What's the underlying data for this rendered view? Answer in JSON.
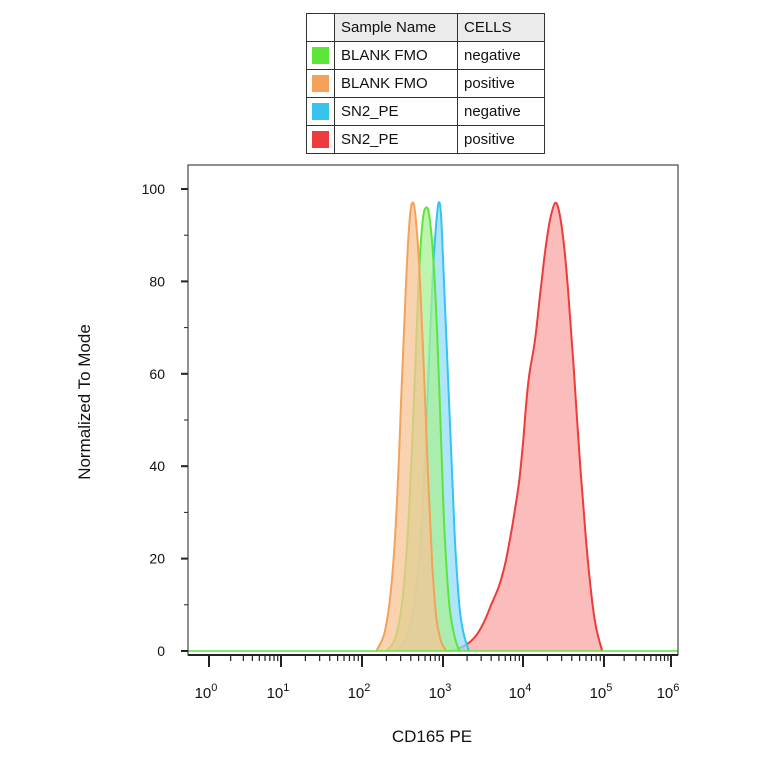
{
  "legend": {
    "headers": [
      "Sample Name",
      "CELLS"
    ],
    "rows": [
      {
        "sample": "BLANK FMO",
        "cells": "negative",
        "color": "#5ce63a"
      },
      {
        "sample": "BLANK FMO",
        "cells": "positive",
        "color": "#f4a259"
      },
      {
        "sample": "SN2_PE",
        "cells": "negative",
        "color": "#35c3f0"
      },
      {
        "sample": "SN2_PE",
        "cells": "positive",
        "color": "#ee3b3b"
      }
    ]
  },
  "chart_data": {
    "type": "area",
    "xlabel": "CD165 PE",
    "ylabel": "Normalized To Mode",
    "xscale": "biexponential",
    "xticks": [
      {
        "base": "10",
        "exp": "0",
        "value": 1
      },
      {
        "base": "10",
        "exp": "1",
        "value": 10
      },
      {
        "base": "10",
        "exp": "2",
        "value": 100
      },
      {
        "base": "10",
        "exp": "3",
        "value": 1000
      },
      {
        "base": "10",
        "exp": "4",
        "value": 10000
      },
      {
        "base": "10",
        "exp": "5",
        "value": 100000
      },
      {
        "base": "10",
        "exp": "6",
        "value": 1000000
      }
    ],
    "yticks": [
      "0",
      "20",
      "40",
      "60",
      "80",
      "100"
    ],
    "ylim": [
      0,
      100
    ],
    "grid": false,
    "series": [
      {
        "color": "#ee3b3b",
        "fill": "#f9a5a5",
        "points": [
          [
            1200,
            0
          ],
          [
            1800,
            1
          ],
          [
            2500,
            3
          ],
          [
            3200,
            6
          ],
          [
            4000,
            10
          ],
          [
            5000,
            14
          ],
          [
            6000,
            19
          ],
          [
            7000,
            25
          ],
          [
            8000,
            31
          ],
          [
            9000,
            37
          ],
          [
            10000,
            45
          ],
          [
            11000,
            54
          ],
          [
            12000,
            60
          ],
          [
            14000,
            67
          ],
          [
            16000,
            76
          ],
          [
            18000,
            84
          ],
          [
            20000,
            90
          ],
          [
            22000,
            94
          ],
          [
            25000,
            97
          ],
          [
            28000,
            95
          ],
          [
            32000,
            88
          ],
          [
            36000,
            78
          ],
          [
            42000,
            62
          ],
          [
            50000,
            42
          ],
          [
            60000,
            24
          ],
          [
            70000,
            12
          ],
          [
            80000,
            5
          ],
          [
            95000,
            0
          ]
        ]
      },
      {
        "color": "#35c3f0",
        "fill": "#93dcf6",
        "points": [
          [
            250,
            0
          ],
          [
            330,
            2
          ],
          [
            420,
            8
          ],
          [
            520,
            22
          ],
          [
            600,
            42
          ],
          [
            680,
            65
          ],
          [
            750,
            82
          ],
          [
            820,
            92
          ],
          [
            880,
            97
          ],
          [
            940,
            95
          ],
          [
            1000,
            85
          ],
          [
            1100,
            68
          ],
          [
            1250,
            45
          ],
          [
            1400,
            25
          ],
          [
            1600,
            10
          ],
          [
            1800,
            4
          ],
          [
            2100,
            0
          ]
        ]
      },
      {
        "color": "#5ce63a",
        "fill": "#a7f096",
        "points": [
          [
            200,
            0
          ],
          [
            260,
            3
          ],
          [
            320,
            12
          ],
          [
            380,
            30
          ],
          [
            440,
            55
          ],
          [
            500,
            80
          ],
          [
            560,
            93
          ],
          [
            620,
            96
          ],
          [
            680,
            94
          ],
          [
            760,
            85
          ],
          [
            850,
            68
          ],
          [
            950,
            45
          ],
          [
            1050,
            25
          ],
          [
            1200,
            10
          ],
          [
            1400,
            3
          ],
          [
            1600,
            0
          ]
        ]
      },
      {
        "color": "#f4a259",
        "fill": "#f7c494",
        "points": [
          [
            150,
            0
          ],
          [
            190,
            4
          ],
          [
            230,
            14
          ],
          [
            270,
            32
          ],
          [
            310,
            58
          ],
          [
            350,
            80
          ],
          [
            390,
            94
          ],
          [
            430,
            97
          ],
          [
            470,
            92
          ],
          [
            520,
            80
          ],
          [
            590,
            58
          ],
          [
            660,
            36
          ],
          [
            740,
            18
          ],
          [
            830,
            7
          ],
          [
            950,
            2
          ],
          [
            1100,
            0
          ]
        ]
      }
    ]
  }
}
